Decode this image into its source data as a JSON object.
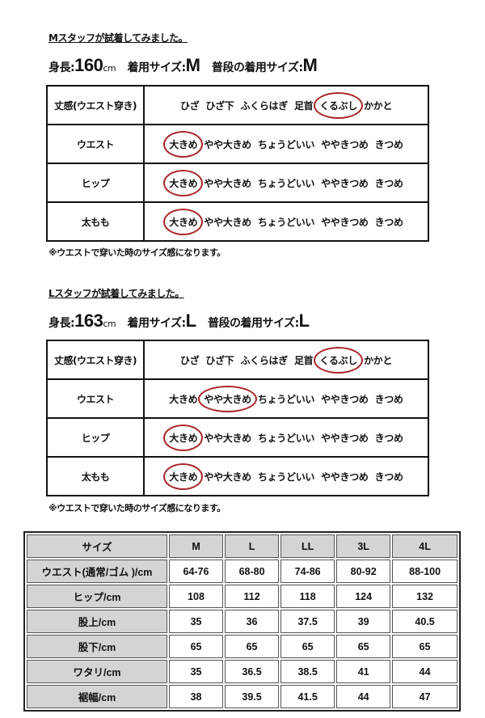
{
  "m_staff": {
    "title": "Mスタッフが試着してみました。",
    "height_label": "身長:",
    "height_value": "160",
    "height_unit": "cm",
    "worn_label": "着用サイズ:",
    "worn_value": "M",
    "usual_label": "普段の着用サイズ:",
    "usual_value": "M",
    "rows": [
      {
        "label": "丈感(ウエスト穿き)",
        "options": [
          "ひざ",
          "ひざ下",
          "ふくらはぎ",
          "足首",
          "くるぶし",
          "かかと"
        ],
        "selected": 4
      },
      {
        "label": "ウエスト",
        "options": [
          "大きめ",
          "やや大きめ",
          "ちょうどいい",
          "ややきつめ",
          "きつめ"
        ],
        "selected": 0
      },
      {
        "label": "ヒップ",
        "options": [
          "大きめ",
          "やや大きめ",
          "ちょうどいい",
          "ややきつめ",
          "きつめ"
        ],
        "selected": 0
      },
      {
        "label": "太もも",
        "options": [
          "大きめ",
          "やや大きめ",
          "ちょうどいい",
          "ややきつめ",
          "きつめ"
        ],
        "selected": 0
      }
    ],
    "note": "※ウエストで穿いた時のサイズ感になります。"
  },
  "l_staff": {
    "title": "Lスタッフが試着してみました。",
    "height_label": "身長:",
    "height_value": "163",
    "height_unit": "cm",
    "worn_label": "着用サイズ:",
    "worn_value": "L",
    "usual_label": "普段の着用サイズ:",
    "usual_value": "L",
    "rows": [
      {
        "label": "丈感(ウエスト穿き)",
        "options": [
          "ひざ",
          "ひざ下",
          "ふくらはぎ",
          "足首",
          "くるぶし",
          "かかと"
        ],
        "selected": 4
      },
      {
        "label": "ウエスト",
        "options": [
          "大きめ",
          "やや大きめ",
          "ちょうどいい",
          "ややきつめ",
          "きつめ"
        ],
        "selected": 1
      },
      {
        "label": "ヒップ",
        "options": [
          "大きめ",
          "やや大きめ",
          "ちょうどいい",
          "ややきつめ",
          "きつめ"
        ],
        "selected": 0
      },
      {
        "label": "太もも",
        "options": [
          "大きめ",
          "やや大きめ",
          "ちょうどいい",
          "ややきつめ",
          "きつめ"
        ],
        "selected": 0
      }
    ],
    "note": "※ウエストで穿いた時のサイズ感になります。"
  },
  "size_chart": {
    "header": [
      "サイズ",
      "M",
      "L",
      "LL",
      "3L",
      "4L"
    ],
    "rows": [
      [
        "ウエスト(通常/ゴム )/cm",
        "64-76",
        "68-80",
        "74-86",
        "80-92",
        "88-100"
      ],
      [
        "ヒップ/cm",
        "108",
        "112",
        "118",
        "124",
        "132"
      ],
      [
        "股上/cm",
        "35",
        "36",
        "37.5",
        "39",
        "40.5"
      ],
      [
        "股下/cm",
        "65",
        "65",
        "65",
        "65",
        "65"
      ],
      [
        "ワタリ/cm",
        "35",
        "36.5",
        "38.5",
        "41",
        "44"
      ],
      [
        "裾幅/cm",
        "38",
        "39.5",
        "41.5",
        "44",
        "47"
      ]
    ]
  },
  "colors": {
    "selection_circle": "#a8262a",
    "header_gray": "#d4d4d4"
  }
}
